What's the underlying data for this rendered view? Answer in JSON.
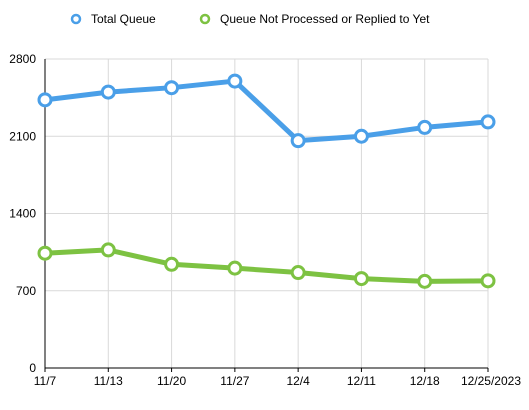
{
  "chart_data": {
    "type": "line",
    "categories": [
      "11/7",
      "11/13",
      "11/20",
      "11/27",
      "12/4",
      "12/11",
      "12/18",
      "12/25/2023"
    ],
    "series": [
      {
        "name": "Total Queue",
        "color": "#4A9FE8",
        "values": [
          2430,
          2500,
          2540,
          2600,
          2060,
          2100,
          2180,
          2230
        ]
      },
      {
        "name": "Queue Not Processed or Replied to Yet",
        "color": "#7DC242",
        "values": [
          1040,
          1070,
          940,
          905,
          865,
          810,
          785,
          790
        ]
      }
    ],
    "y_ticks": [
      0,
      700,
      1400,
      2100,
      2800
    ],
    "ylim": [
      0,
      2800
    ],
    "grid": true,
    "legend_position": "top"
  }
}
